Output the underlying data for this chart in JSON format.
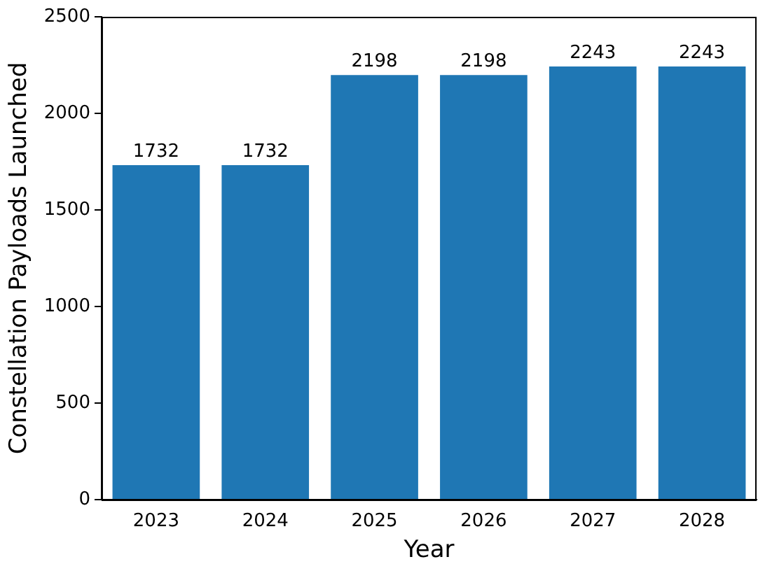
{
  "chart_data": {
    "type": "bar",
    "xlabel": "Year",
    "ylabel": "Constellation Payloads Launched",
    "categories": [
      "2023",
      "2024",
      "2025",
      "2026",
      "2027",
      "2028"
    ],
    "values": [
      1732,
      1732,
      2198,
      2198,
      2243,
      2243
    ],
    "color": "#1f77b4",
    "ylim": [
      0,
      2500
    ],
    "yticks": [
      0,
      500,
      1000,
      1500,
      2000,
      2500
    ],
    "grid": false,
    "legend": false,
    "data_labels": true
  }
}
